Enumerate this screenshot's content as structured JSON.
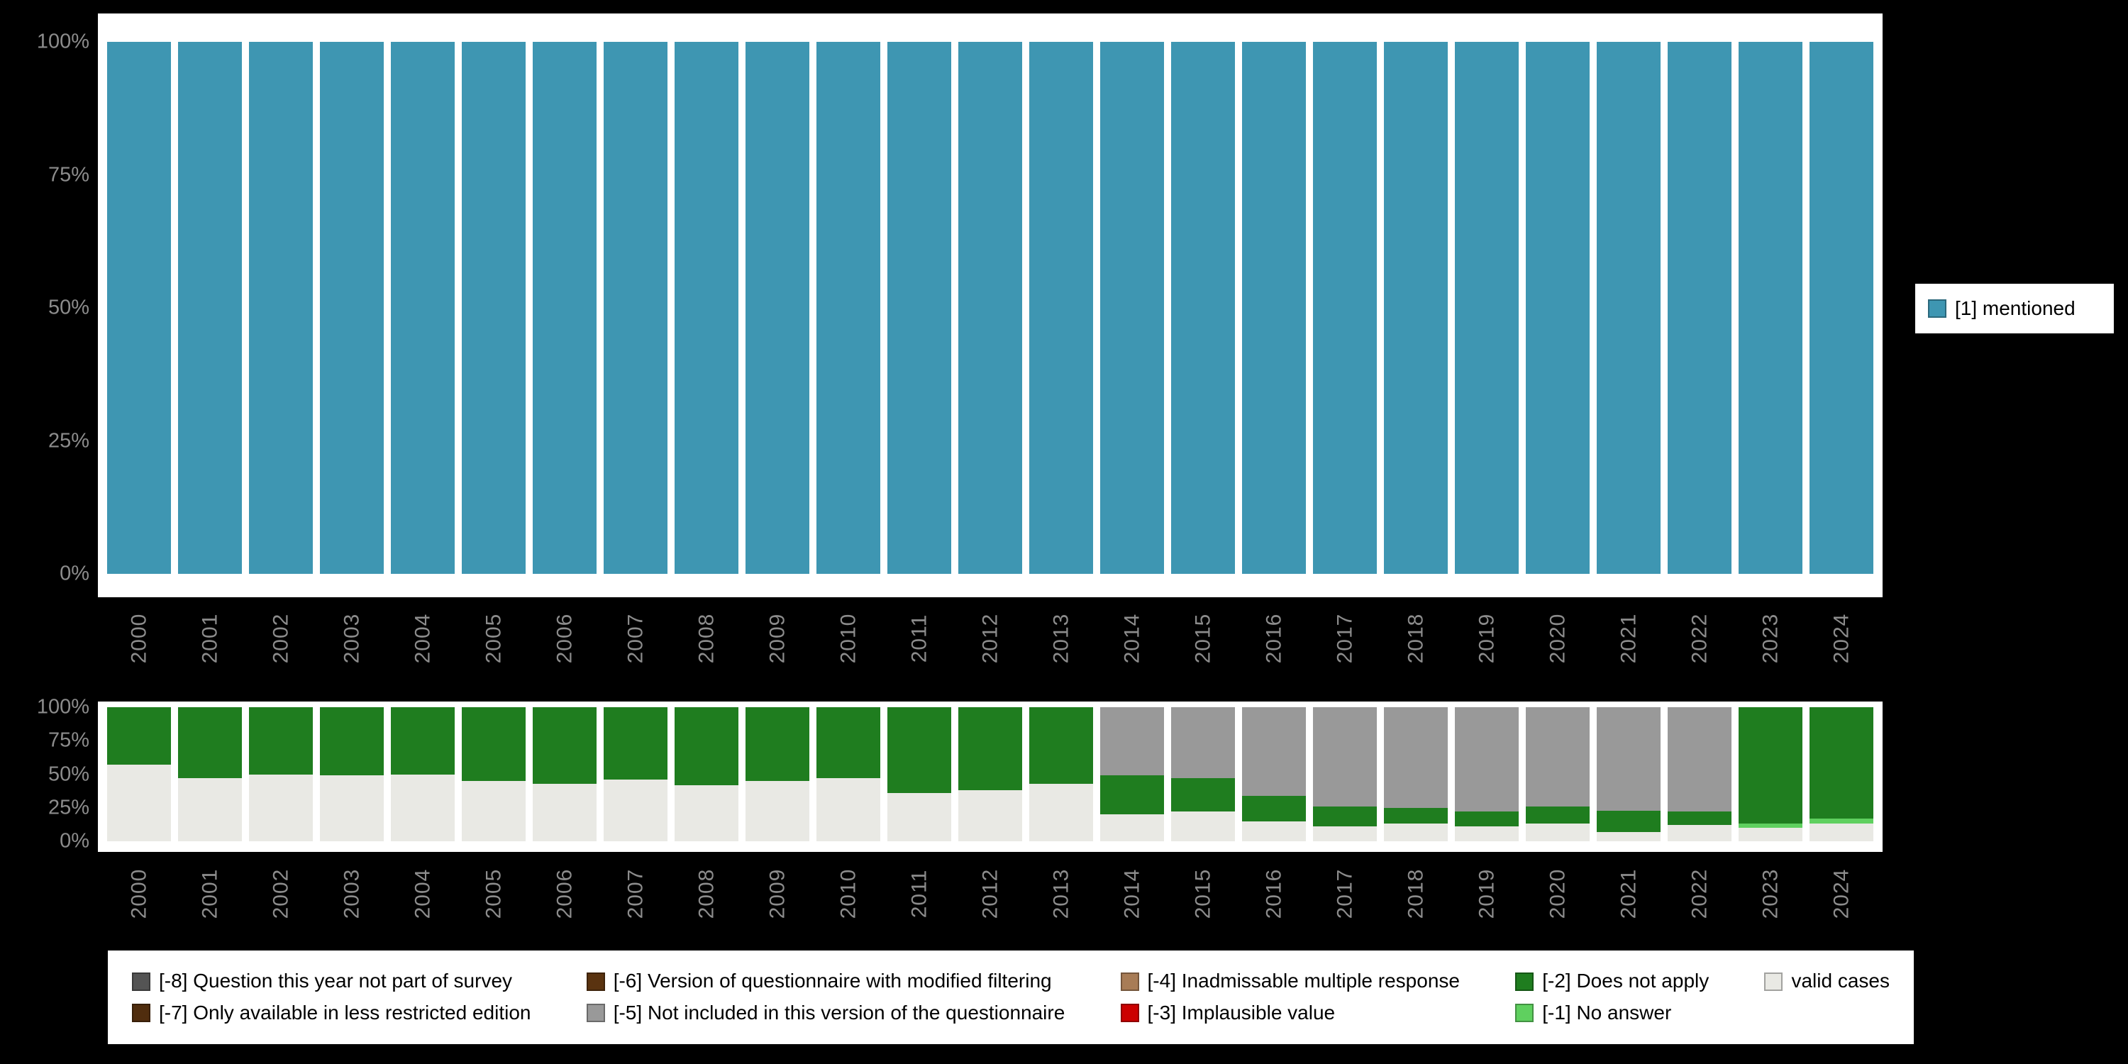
{
  "colors": {
    "background": "#000000",
    "panel": "#ffffff",
    "axis_text": "#8c8c8c",
    "mentioned": "#3e96b2",
    "valid_cases": "#e9e9e4",
    "does_not_apply": "#1f7d1f",
    "not_included": "#999999",
    "no_answer": "#5fd05f",
    "implausible": "#cc0000",
    "inadmissable": "#a87c56",
    "not_part_of_survey": "#545454",
    "less_restricted": "#502d0e",
    "modified_filtering": "#5a3310"
  },
  "chart_data": [
    {
      "id": "top-bar-chart",
      "type": "bar",
      "categories": [
        "2000",
        "2001",
        "2002",
        "2003",
        "2004",
        "2005",
        "2006",
        "2007",
        "2008",
        "2009",
        "2010",
        "2011",
        "2012",
        "2013",
        "2014",
        "2015",
        "2016",
        "2017",
        "2018",
        "2019",
        "2020",
        "2021",
        "2022",
        "2023",
        "2024"
      ],
      "series": [
        {
          "name": "[1] mentioned",
          "color": "#3e96b2",
          "values": [
            100,
            100,
            100,
            100,
            100,
            100,
            100,
            100,
            100,
            100,
            100,
            100,
            100,
            100,
            100,
            100,
            100,
            100,
            100,
            100,
            100,
            100,
            100,
            100,
            100
          ]
        }
      ],
      "ylim": [
        0,
        100
      ],
      "yticks": [
        0,
        25,
        50,
        75,
        100
      ],
      "ytick_labels": [
        "0%",
        "25%",
        "50%",
        "75%",
        "100%"
      ],
      "grid": false,
      "legend_position": "right"
    },
    {
      "id": "bottom-stacked-bar-chart",
      "type": "stacked-bar-percent",
      "categories": [
        "2000",
        "2001",
        "2002",
        "2003",
        "2004",
        "2005",
        "2006",
        "2007",
        "2008",
        "2009",
        "2010",
        "2011",
        "2012",
        "2013",
        "2014",
        "2015",
        "2016",
        "2017",
        "2018",
        "2019",
        "2020",
        "2021",
        "2022",
        "2023",
        "2024"
      ],
      "series": [
        {
          "name": "valid cases",
          "color": "#e9e9e4",
          "values": [
            57,
            47,
            50,
            49,
            50,
            45,
            43,
            46,
            42,
            45,
            47,
            36,
            38,
            43,
            20,
            22,
            15,
            11,
            13,
            11,
            13,
            7,
            12,
            10,
            13
          ]
        },
        {
          "name": "[-1] No answer",
          "color": "#5fd05f",
          "values": [
            0,
            0,
            0,
            0,
            0,
            0,
            0,
            0,
            0,
            0,
            0,
            0,
            0,
            0,
            0,
            0,
            0,
            0,
            0,
            0,
            0,
            0,
            0,
            3,
            4
          ]
        },
        {
          "name": "[-2] Does not apply",
          "color": "#1f7d1f",
          "values": [
            43,
            53,
            50,
            51,
            50,
            55,
            57,
            54,
            58,
            55,
            53,
            64,
            62,
            57,
            29,
            25,
            19,
            15,
            12,
            11,
            13,
            16,
            10,
            87,
            83
          ]
        },
        {
          "name": "[-5] Not included in this version of the questionnaire",
          "color": "#999999",
          "values": [
            0,
            0,
            0,
            0,
            0,
            0,
            0,
            0,
            0,
            0,
            0,
            0,
            0,
            0,
            51,
            53,
            66,
            74,
            75,
            78,
            74,
            77,
            78,
            0,
            0
          ]
        }
      ],
      "ylim": [
        0,
        100
      ],
      "yticks": [
        0,
        25,
        50,
        75,
        100
      ],
      "ytick_labels": [
        "0%",
        "25%",
        "50%",
        "75%",
        "100%"
      ],
      "grid": false,
      "legend_position": "bottom"
    }
  ],
  "legend_right": {
    "items": [
      {
        "label": "[1] mentioned",
        "color": "#3e96b2"
      }
    ]
  },
  "legend_bottom": {
    "items": [
      {
        "label": "[-8] Question this year not part of survey",
        "color": "#545454"
      },
      {
        "label": "[-6] Version of questionnaire with modified filtering",
        "color": "#5a3310"
      },
      {
        "label": "[-4] Inadmissable multiple response",
        "color": "#a87c56"
      },
      {
        "label": "[-2] Does not apply",
        "color": "#1f7d1f"
      },
      {
        "label": "valid cases",
        "color": "#e9e9e4"
      },
      {
        "label": "[-7] Only available in less restricted edition",
        "color": "#502d0e"
      },
      {
        "label": "[-5] Not included in this version of the questionnaire",
        "color": "#999999"
      },
      {
        "label": "[-3] Implausible value",
        "color": "#cc0000"
      },
      {
        "label": "[-1] No answer",
        "color": "#5fd05f"
      }
    ]
  }
}
